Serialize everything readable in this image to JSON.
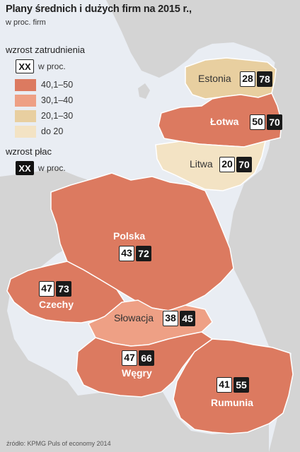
{
  "title": "Plany średnich i dużych firm na 2015 r.,",
  "subtitle": "w proc. firm",
  "legend": {
    "employment_heading": "wzrost zatrudnienia",
    "employment_box": "XX",
    "employment_unit": "w proc.",
    "classes": [
      {
        "label": "40,1–50",
        "color": "#dc7a60"
      },
      {
        "label": "30,1–40",
        "color": "#eea085"
      },
      {
        "label": "20,1–30",
        "color": "#e8cfa0"
      },
      {
        "label": "do 20",
        "color": "#f3e3c4"
      }
    ],
    "wage_heading": "wzrost płac",
    "wage_box": "XX",
    "wage_unit": "w proc."
  },
  "countries": {
    "estonia": {
      "name": "Estonia",
      "employment": "28",
      "wages": "78",
      "fill": "#e8cfa0"
    },
    "latvia": {
      "name": "Łotwa",
      "employment": "50",
      "wages": "70",
      "fill": "#dc7a60"
    },
    "lithuania": {
      "name": "Litwa",
      "employment": "20",
      "wages": "70",
      "fill": "#f3e3c4"
    },
    "poland": {
      "name": "Polska",
      "employment": "43",
      "wages": "72",
      "fill": "#dc7a60"
    },
    "czechia": {
      "name": "Czechy",
      "employment": "47",
      "wages": "73",
      "fill": "#dc7a60"
    },
    "slovakia": {
      "name": "Słowacja",
      "employment": "38",
      "wages": "45",
      "fill": "#eea085"
    },
    "hungary": {
      "name": "Węgry",
      "employment": "47",
      "wages": "66",
      "fill": "#dc7a60"
    },
    "romania": {
      "name": "Rumunia",
      "employment": "41",
      "wages": "55",
      "fill": "#dc7a60"
    }
  },
  "colors": {
    "land": "#d4d4d4",
    "sea": "#e9edf3",
    "border": "#ffffff"
  },
  "source": "źródło: KPMG Puls of economy 2014"
}
